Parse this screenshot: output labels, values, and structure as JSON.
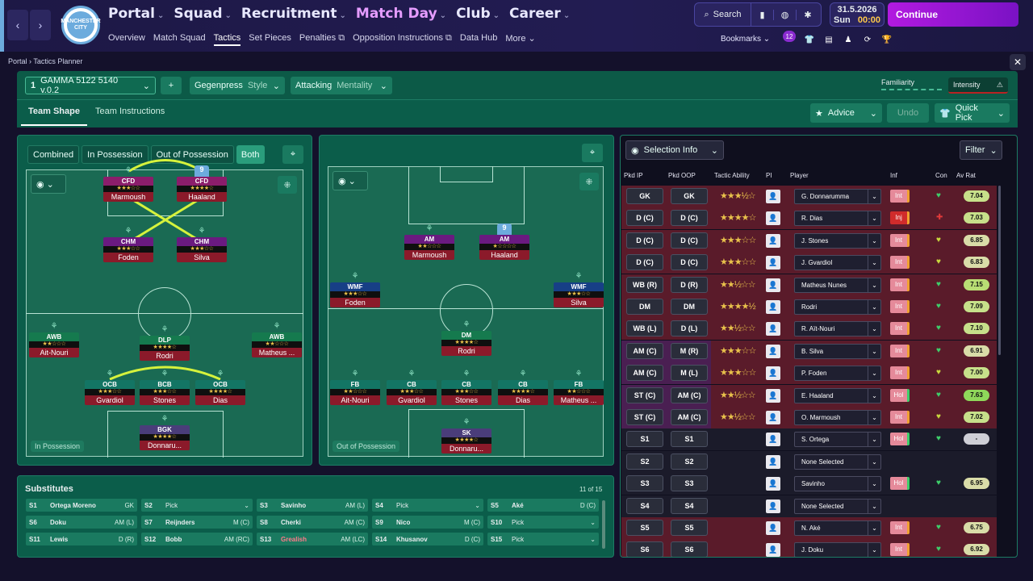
{
  "topbar": {
    "nav": [
      "Portal",
      "Squad",
      "Recruitment",
      "Match Day",
      "Club",
      "Career"
    ],
    "subnav": [
      "Overview",
      "Match Squad",
      "Tactics",
      "Set Pieces",
      "Penalties",
      "Opposition Instructions",
      "Data Hub",
      "More"
    ],
    "search_label": "Search",
    "bookmarks_label": "Bookmarks",
    "date": "31.5.2026",
    "day": "Sun",
    "time": "00:00",
    "continue_label": "Continue",
    "crest_text": "MANCHESTER CITY",
    "badge": "12"
  },
  "breadcrumb": {
    "root": "Portal",
    "page": "Tactics Planner"
  },
  "planner": {
    "tactic_num": "1",
    "tactic_name": "GAMMA 5122 5140 v.0.2",
    "style_value": "Gegenpress",
    "style_label": "Style",
    "mentality_value": "Attacking",
    "mentality_label": "Mentality",
    "familiarity_label": "Familiarity",
    "intensity_label": "Intensity",
    "tabs": [
      "Team Shape",
      "Team Instructions"
    ],
    "advice_label": "Advice",
    "undo_label": "Undo",
    "quickpick_label": "Quick Pick"
  },
  "pitch_left": {
    "filters": [
      "Combined",
      "In Possession",
      "Out of Possession",
      "Both"
    ],
    "tag": "In Possession",
    "players": [
      {
        "pos": "CFD",
        "name": "Marmoush",
        "stars": "★★★☆☆",
        "color": "#8b1d6b"
      },
      {
        "pos": "CFD",
        "name": "Haaland",
        "stars": "★★★★☆",
        "color": "#8b1d6b",
        "num": "9"
      },
      {
        "pos": "CHM",
        "name": "Foden",
        "stars": "★★★☆☆",
        "color": "#6a1a80"
      },
      {
        "pos": "CHM",
        "name": "Silva",
        "stars": "★★★☆☆",
        "color": "#6a1a80"
      },
      {
        "pos": "AWB",
        "name": "Ait-Nouri",
        "stars": "★★☆☆☆",
        "color": "#157a4e"
      },
      {
        "pos": "DLP",
        "name": "Rodri",
        "stars": "★★★★☆",
        "color": "#157a4e"
      },
      {
        "pos": "AWB",
        "name": "Matheus ...",
        "stars": "★★☆☆☆",
        "color": "#157a4e"
      },
      {
        "pos": "OCB",
        "name": "Gvardiol",
        "stars": "★★★☆☆",
        "color": "#137564"
      },
      {
        "pos": "BCB",
        "name": "Stones",
        "stars": "★★★☆☆",
        "color": "#137564"
      },
      {
        "pos": "OCB",
        "name": "Dias",
        "stars": "★★★★☆",
        "color": "#137564"
      },
      {
        "pos": "BGK",
        "name": "Donnaru...",
        "stars": "★★★★☆",
        "color": "#4a3d7a"
      }
    ]
  },
  "pitch_right": {
    "tag": "Out of Possession",
    "players": [
      {
        "pos": "AM",
        "name": "Marmoush",
        "stars": "★★☆☆☆",
        "color": "#6a1a80"
      },
      {
        "pos": "AM",
        "name": "Haaland",
        "stars": "★☆☆☆☆",
        "color": "#6a1a80",
        "num": "9"
      },
      {
        "pos": "WMF",
        "name": "Foden",
        "stars": "★★★☆☆",
        "color": "#173f86"
      },
      {
        "pos": "WMF",
        "name": "Silva",
        "stars": "★★★☆☆",
        "color": "#173f86"
      },
      {
        "pos": "DM",
        "name": "Rodri",
        "stars": "★★★★☆",
        "color": "#157a4e"
      },
      {
        "pos": "FB",
        "name": "Ait-Nouri",
        "stars": "★★☆☆☆",
        "color": "#137564"
      },
      {
        "pos": "CB",
        "name": "Gvardiol",
        "stars": "★★★☆☆",
        "color": "#137564"
      },
      {
        "pos": "CB",
        "name": "Stones",
        "stars": "★★★☆☆",
        "color": "#137564"
      },
      {
        "pos": "CB",
        "name": "Dias",
        "stars": "★★★★☆",
        "color": "#137564"
      },
      {
        "pos": "FB",
        "name": "Matheus ...",
        "stars": "★★☆☆☆",
        "color": "#137564"
      },
      {
        "pos": "SK",
        "name": "Donnaru...",
        "stars": "★★★★☆",
        "color": "#4a3d7a"
      }
    ]
  },
  "subs": {
    "title": "Substitutes",
    "count": "11 of 15",
    "items": [
      {
        "n": "S1",
        "name": "Ortega Moreno",
        "pos": "GK"
      },
      {
        "n": "S2",
        "name": "Pick",
        "pos": "⌄"
      },
      {
        "n": "S3",
        "name": "Savinho",
        "pos": "AM (L)"
      },
      {
        "n": "S4",
        "name": "Pick",
        "pos": "⌄"
      },
      {
        "n": "S5",
        "name": "Aké",
        "pos": "D (C)"
      },
      {
        "n": "S6",
        "name": "Doku",
        "pos": "AM (L)"
      },
      {
        "n": "S7",
        "name": "Reijnders",
        "pos": "M (C)"
      },
      {
        "n": "S8",
        "name": "Cherki",
        "pos": "AM (C)"
      },
      {
        "n": "S9",
        "name": "Nico",
        "pos": "M (C)"
      },
      {
        "n": "S10",
        "name": "Pick",
        "pos": "⌄"
      },
      {
        "n": "S11",
        "name": "Lewis",
        "pos": "D (R)"
      },
      {
        "n": "S12",
        "name": "Bobb",
        "pos": "AM (RC)"
      },
      {
        "n": "S13",
        "name": "Grealish",
        "pos": "AM (LC)"
      },
      {
        "n": "S14",
        "name": "Khusanov",
        "pos": "D (C)"
      },
      {
        "n": "S15",
        "name": "Pick",
        "pos": "⌄"
      }
    ]
  },
  "selection": {
    "info_label": "Selection Info",
    "filter_label": "Filter",
    "headers": [
      "Pkd IP",
      "Pkd OOP",
      "Tactic Ability",
      "PI",
      "Player",
      "Inf",
      "Con",
      "Av Rat"
    ],
    "rows": [
      {
        "ip": "GK",
        "oop": "GK",
        "stars": "★★★½☆",
        "player": "G. Donnarumma",
        "inf": "Int",
        "rat": "7.04",
        "row": "#5a1b2a",
        "ratc": "#c7e08a",
        "conc": "#3ecf6a"
      },
      {
        "ip": "D (C)",
        "oop": "D (C)",
        "stars": "★★★★☆",
        "player": "R. Dias",
        "inf": "Inj",
        "rat": "7.03",
        "row": "#5a1b2a",
        "ratc": "#c7e08a",
        "conc": "#e23a3a"
      },
      {
        "ip": "D (C)",
        "oop": "D (C)",
        "stars": "★★★☆☆",
        "player": "J. Stones",
        "inf": "Int",
        "rat": "6.85",
        "row": "#5a1b2a",
        "ratc": "#d9dca8",
        "conc": "#c9d93e"
      },
      {
        "ip": "D (C)",
        "oop": "D (C)",
        "stars": "★★★☆☆",
        "player": "J. Gvardiol",
        "inf": "Int",
        "rat": "6.83",
        "row": "#5a1b2a",
        "ratc": "#d9dca8",
        "conc": "#c9d93e"
      },
      {
        "ip": "WB (R)",
        "oop": "D (R)",
        "stars": "★★½☆☆",
        "player": "Matheus Nunes",
        "inf": "Int",
        "rat": "7.15",
        "row": "#5a1b2a",
        "ratc": "#b9de74",
        "conc": "#3ecf6a"
      },
      {
        "ip": "DM",
        "oop": "DM",
        "stars": "★★★★½",
        "player": "Rodri",
        "inf": "Int",
        "rat": "7.09",
        "row": "#5a1b2a",
        "ratc": "#c7e08a",
        "conc": "#3ecf6a"
      },
      {
        "ip": "WB (L)",
        "oop": "D (L)",
        "stars": "★★½☆☆",
        "player": "R. Aït-Nouri",
        "inf": "Int",
        "rat": "7.10",
        "row": "#5a1b2a",
        "ratc": "#c7e08a",
        "conc": "#3ecf6a"
      },
      {
        "ip": "AM (C)",
        "oop": "M (R)",
        "stars": "★★★☆☆",
        "player": "B. Silva",
        "inf": "Int",
        "rat": "6.91",
        "row": "#5a1b2a",
        "ratc": "#d9dca8",
        "conc": "#3ecf6a"
      },
      {
        "ip": "AM (C)",
        "oop": "M (L)",
        "stars": "★★★☆☆",
        "player": "P. Foden",
        "inf": "Int",
        "rat": "7.00",
        "row": "#5a1b2a",
        "ratc": "#c7e08a",
        "conc": "#c9d93e"
      },
      {
        "ip": "ST (C)",
        "oop": "AM (C)",
        "stars": "★★½☆☆",
        "player": "E. Haaland",
        "inf": "Hol",
        "rat": "7.63",
        "row": "#5a1b2a",
        "ratc": "#8fd85a",
        "conc": "#3ecf6a"
      },
      {
        "ip": "ST (C)",
        "oop": "AM (C)",
        "stars": "★★½☆☆",
        "player": "O. Marmoush",
        "inf": "Int",
        "rat": "7.02",
        "row": "#5a1b2a",
        "ratc": "#c7e08a",
        "conc": "#c9d93e"
      },
      {
        "ip": "S1",
        "oop": "S1",
        "stars": "",
        "player": "S. Ortega",
        "inf": "Hol",
        "rat": "-",
        "row": "#1b1b2a",
        "ratc": "#cfcfd6",
        "conc": "#3ecf6a"
      },
      {
        "ip": "S2",
        "oop": "S2",
        "stars": "",
        "player": "None Selected",
        "inf": "",
        "rat": "",
        "row": "#1b1b2a",
        "ratc": "",
        "conc": ""
      },
      {
        "ip": "S3",
        "oop": "S3",
        "stars": "",
        "player": "Savinho",
        "inf": "Hol",
        "rat": "6.95",
        "row": "#1b1b2a",
        "ratc": "#d9dca8",
        "conc": "#3ecf6a"
      },
      {
        "ip": "S4",
        "oop": "S4",
        "stars": "",
        "player": "None Selected",
        "inf": "",
        "rat": "",
        "row": "#1b1b2a",
        "ratc": "",
        "conc": ""
      },
      {
        "ip": "S5",
        "oop": "S5",
        "stars": "",
        "player": "N. Aké",
        "inf": "Int",
        "rat": "6.75",
        "row": "#5a1b2a",
        "ratc": "#d9dca8",
        "conc": "#3ecf6a"
      },
      {
        "ip": "S6",
        "oop": "S6",
        "stars": "",
        "player": "J. Doku",
        "inf": "Int",
        "rat": "6.92",
        "row": "#5a1b2a",
        "ratc": "#d9dca8",
        "conc": "#3ecf6a"
      }
    ]
  }
}
